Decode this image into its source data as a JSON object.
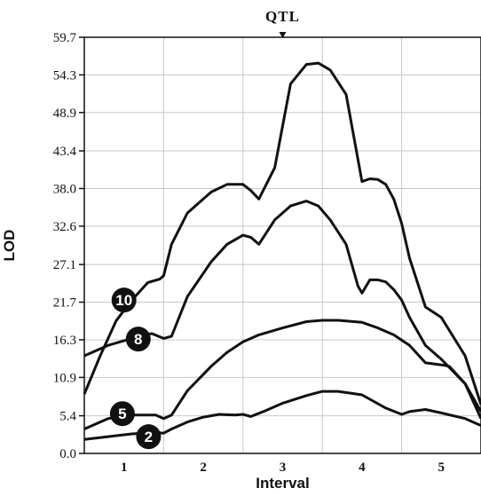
{
  "chart_data": {
    "type": "line",
    "marker_label": "QTL",
    "xlabel": "Interval",
    "ylabel": "LOD",
    "categories": [
      "1",
      "2",
      "3",
      "4",
      "5"
    ],
    "xlim": [
      0,
      5
    ],
    "ylim": [
      0,
      59.7
    ],
    "yticks": [
      "0.0",
      "5.4",
      "10.9",
      "16.3",
      "21.7",
      "27.1",
      "32.6",
      "38.0",
      "43.4",
      "48.9",
      "54.3",
      "59.7"
    ],
    "grid": true,
    "qtl_position": 2.5,
    "series": [
      {
        "name": "10",
        "x": [
          0,
          0.2,
          0.4,
          0.6,
          0.8,
          0.95,
          1.0,
          1.1,
          1.3,
          1.6,
          1.8,
          2.0,
          2.1,
          2.2,
          2.4,
          2.5,
          2.6,
          2.8,
          2.95,
          3.1,
          3.3,
          3.5,
          3.6,
          3.7,
          3.8,
          3.9,
          4.0,
          4.1,
          4.3,
          4.5,
          4.8,
          5.0
        ],
        "y": [
          8.5,
          14,
          19,
          22,
          24.5,
          25.0,
          25.5,
          30,
          34.5,
          37.5,
          38.6,
          38.6,
          37.7,
          36.5,
          41,
          47,
          53,
          55.8,
          56,
          55,
          51.5,
          39,
          39.4,
          39.3,
          38.6,
          36.5,
          33,
          28,
          21,
          19.5,
          14,
          7
        ]
      },
      {
        "name": "8",
        "x": [
          0,
          0.3,
          0.6,
          0.85,
          1.0,
          1.1,
          1.3,
          1.6,
          1.8,
          2.0,
          2.1,
          2.2,
          2.4,
          2.5,
          2.6,
          2.8,
          2.95,
          3.1,
          3.3,
          3.45,
          3.5,
          3.6,
          3.7,
          3.8,
          3.9,
          4.0,
          4.1,
          4.3,
          4.5,
          4.8,
          5.0
        ],
        "y": [
          14,
          15.5,
          16.5,
          17.2,
          16.5,
          16.8,
          22.5,
          27.5,
          30,
          31.3,
          31.0,
          30.0,
          33.5,
          34.5,
          35.5,
          36.2,
          35.5,
          33.5,
          30,
          24,
          23,
          24.9,
          24.9,
          24.6,
          23.5,
          22,
          19.5,
          15.5,
          13.5,
          10,
          6
        ]
      },
      {
        "name": "5",
        "x": [
          0,
          0.3,
          0.6,
          0.9,
          1.0,
          1.1,
          1.3,
          1.6,
          1.8,
          2.0,
          2.2,
          2.5,
          2.8,
          3.0,
          3.2,
          3.5,
          3.7,
          3.9,
          4.1,
          4.3,
          4.5,
          4.6,
          4.8,
          5.0
        ],
        "y": [
          3.5,
          5,
          5.5,
          5.5,
          5.0,
          5.5,
          9,
          12.5,
          14.5,
          16,
          17,
          18,
          18.9,
          19.1,
          19.1,
          18.8,
          18,
          17,
          15.5,
          13,
          12.7,
          12.5,
          10,
          5
        ]
      },
      {
        "name": "2",
        "x": [
          0,
          0.3,
          0.6,
          0.9,
          1.0,
          1.1,
          1.3,
          1.5,
          1.7,
          1.9,
          2.0,
          2.1,
          2.3,
          2.5,
          2.8,
          3.0,
          3.2,
          3.5,
          3.8,
          4.0,
          4.1,
          4.3,
          4.5,
          4.8,
          5.0
        ],
        "y": [
          2,
          2.4,
          2.8,
          3.0,
          2.9,
          3.5,
          4.5,
          5.2,
          5.6,
          5.5,
          5.6,
          5.3,
          6.2,
          7.2,
          8.3,
          8.9,
          8.9,
          8.4,
          6.5,
          5.6,
          6.0,
          6.3,
          5.8,
          5.0,
          4.0
        ]
      }
    ],
    "labels": [
      {
        "series": "10",
        "text": "10",
        "x": 0.5,
        "y": 22
      },
      {
        "series": "8",
        "text": "8",
        "x": 0.68,
        "y": 16.4
      },
      {
        "series": "5",
        "text": "5",
        "x": 0.48,
        "y": 5.7
      },
      {
        "series": "2",
        "text": "2",
        "x": 0.81,
        "y": 2.4
      }
    ]
  }
}
